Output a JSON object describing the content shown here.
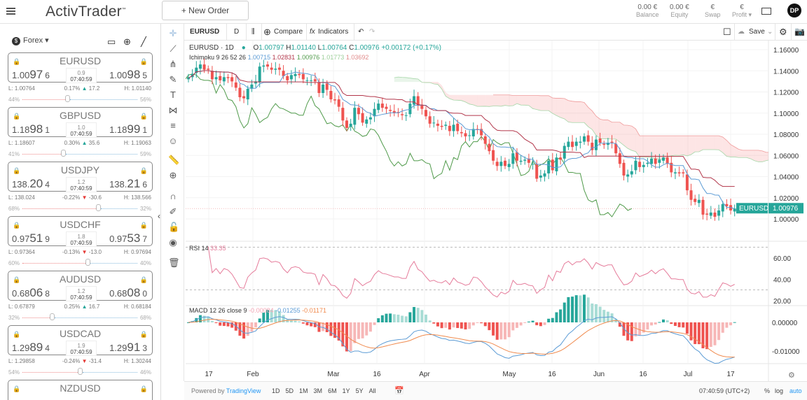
{
  "header": {
    "logo": "ActivTrader",
    "logo_mark": "™",
    "new_order": "+ New Order",
    "stats": [
      {
        "value": "0.00 €",
        "label": "Balance"
      },
      {
        "value": "0.00 €",
        "label": "Equity"
      },
      {
        "value": "€",
        "label": "Swap"
      },
      {
        "value": "€",
        "label": "Profit"
      }
    ],
    "avatar": "DP"
  },
  "sidebar": {
    "category": "Forex",
    "category_icon": "$",
    "cards": [
      {
        "pair": "EURUSD",
        "bid": [
          "1.00",
          "97",
          "6"
        ],
        "ask": [
          "1.00",
          "98",
          "5"
        ],
        "spread": "0.9",
        "time": "07:40:59",
        "low": "L: 1.00764",
        "change": "0.17%",
        "dir": "up",
        "points": "17.2",
        "high": "H: 1.01140",
        "sell": "44%",
        "buy": "56%",
        "sell_frac": 0.44
      },
      {
        "pair": "GBPUSD",
        "bid": [
          "1.18",
          "98",
          "1"
        ],
        "ask": [
          "1.18",
          "99",
          "1"
        ],
        "spread": "1.0",
        "time": "07:40:59",
        "low": "L: 1.18607",
        "change": "0.30%",
        "dir": "up",
        "points": "35.6",
        "high": "H: 1.19063",
        "sell": "41%",
        "buy": "59%",
        "sell_frac": 0.41
      },
      {
        "pair": "USDJPY",
        "bid": [
          "138.",
          "20",
          "4"
        ],
        "ask": [
          "138.",
          "21",
          "6"
        ],
        "spread": "1.2",
        "time": "07:40:59",
        "low": "L: 138.024",
        "change": "-0.22%",
        "dir": "down",
        "points": "-30.6",
        "high": "H: 138.566",
        "sell": "68%",
        "buy": "32%",
        "sell_frac": 0.68
      },
      {
        "pair": "USDCHF",
        "bid": [
          "0.97",
          "51",
          "9"
        ],
        "ask": [
          "0.97",
          "53",
          "7"
        ],
        "spread": "1.8",
        "time": "07:40:59",
        "low": "L: 0.97364",
        "change": "-0.13%",
        "dir": "down",
        "points": "-13.0",
        "high": "H: 0.97694",
        "sell": "60%",
        "buy": "40%",
        "sell_frac": 0.6
      },
      {
        "pair": "AUDUSD",
        "bid": [
          "0.68",
          "06",
          "8"
        ],
        "ask": [
          "0.68",
          "08",
          "0"
        ],
        "spread": "1.2",
        "time": "07:40:59",
        "low": "L: 0.67879",
        "change": "0.25%",
        "dir": "up",
        "points": "16.7",
        "high": "H: 0.68184",
        "sell": "32%",
        "buy": "68%",
        "sell_frac": 0.32
      },
      {
        "pair": "USDCAD",
        "bid": [
          "1.29",
          "89",
          "4"
        ],
        "ask": [
          "1.29",
          "91",
          "3"
        ],
        "spread": "1.9",
        "time": "07:40:59",
        "low": "L: 1.29858",
        "change": "-0.24%",
        "dir": "down",
        "points": "-31.4",
        "high": "H: 1.30244",
        "sell": "54%",
        "buy": "46%",
        "sell_frac": 0.54
      },
      {
        "pair": "NZDUSD"
      }
    ]
  },
  "toolbar": {
    "symbol": "EURUSD",
    "interval": "D",
    "compare": "Compare",
    "indicators": "Indicators",
    "save": "Save"
  },
  "legend": {
    "title": "EURUSD · 1D",
    "ohlc": [
      {
        "k": "O",
        "v": "1.00797"
      },
      {
        "k": "H",
        "v": "1.01140"
      },
      {
        "k": "L",
        "v": "1.00764"
      },
      {
        "k": "C",
        "v": "1.00976"
      }
    ],
    "change": "+0.00172 (+0.17%)",
    "ichimoku_label": "Ichimoku 9 26 52 26",
    "ichimoku_values": [
      "1.00715",
      "1.02831",
      "1.00976",
      "1.01773",
      "1.03692"
    ],
    "rsi_label": "RSI 14",
    "rsi_value": "33.35",
    "macd_label": "MACD 12 26 close 9",
    "macd_values": [
      "-0.00084",
      "-0.01255",
      "-0.01171"
    ]
  },
  "price_tag": {
    "symbol": "EURUSD",
    "value": "1.00976"
  },
  "colors": {
    "up": "#26a69a",
    "down": "#ef5350",
    "rsi": "#e57b9a",
    "macd": "#5b9bd5",
    "signal": "#f08b4f",
    "tenkan": "#5b9bd5",
    "kijun": "#b2364a",
    "lagging": "#4f9a4a"
  },
  "chart_data": {
    "type": "candlestick",
    "price_axis": [
      "1.16000",
      "1.14000",
      "1.12000",
      "1.10000",
      "1.08000",
      "1.06000",
      "1.04000",
      "1.02000",
      "1.00000"
    ],
    "price_ylim": [
      0.98,
      1.17
    ],
    "rsi_axis": [
      "60.00",
      "40.00",
      "20.00"
    ],
    "macd_axis": [
      "0.00000",
      "-0.01000"
    ],
    "x_ticks": [
      "17",
      "Feb",
      "Mar",
      "16",
      "Apr",
      "May",
      "16",
      "Jun",
      "16",
      "Jul",
      "17"
    ],
    "closes": [
      1.134,
      1.137,
      1.143,
      1.146,
      1.141,
      1.141,
      1.132,
      1.134,
      1.131,
      1.134,
      1.133,
      1.13,
      1.124,
      1.115,
      1.114,
      1.123,
      1.127,
      1.13,
      1.144,
      1.145,
      1.144,
      1.141,
      1.142,
      1.141,
      1.135,
      1.131,
      1.136,
      1.137,
      1.136,
      1.132,
      1.131,
      1.131,
      1.13,
      1.119,
      1.127,
      1.122,
      1.113,
      1.112,
      1.106,
      1.093,
      1.086,
      1.09,
      1.105,
      1.099,
      1.091,
      1.094,
      1.096,
      1.104,
      1.109,
      1.105,
      1.104,
      1.102,
      1.1,
      1.1,
      1.098,
      1.098,
      1.109,
      1.116,
      1.107,
      1.104,
      1.097,
      1.09,
      1.091,
      1.088,
      1.087,
      1.089,
      1.083,
      1.089,
      1.083,
      1.081,
      1.078,
      1.079,
      1.085,
      1.084,
      1.079,
      1.071,
      1.064,
      1.055,
      1.05,
      1.054,
      1.05,
      1.052,
      1.062,
      1.055,
      1.055,
      1.056,
      1.053,
      1.052,
      1.038,
      1.041,
      1.043,
      1.055,
      1.046,
      1.058,
      1.056,
      1.069,
      1.073,
      1.068,
      1.073,
      1.073,
      1.078,
      1.073,
      1.065,
      1.075,
      1.072,
      1.07,
      1.072,
      1.072,
      1.062,
      1.052,
      1.041,
      1.042,
      1.045,
      1.055,
      1.049,
      1.051,
      1.053,
      1.057,
      1.052,
      1.056,
      1.058,
      1.052,
      1.044,
      1.044,
      1.043,
      1.043,
      1.027,
      1.018,
      1.016,
      1.018,
      1.004,
      1.004,
      1.006,
      1.002,
      1.008,
      1.014,
      1.012,
      1.008,
      1.00976
    ]
  },
  "bottom": {
    "powered": "Powered by ",
    "brand": "TradingView",
    "ranges": [
      "1D",
      "5D",
      "1M",
      "3M",
      "6M",
      "1Y",
      "5Y",
      "All"
    ],
    "time": "07:40:59 (UTC+2)",
    "pct": "%",
    "log": "log",
    "auto": "auto"
  }
}
